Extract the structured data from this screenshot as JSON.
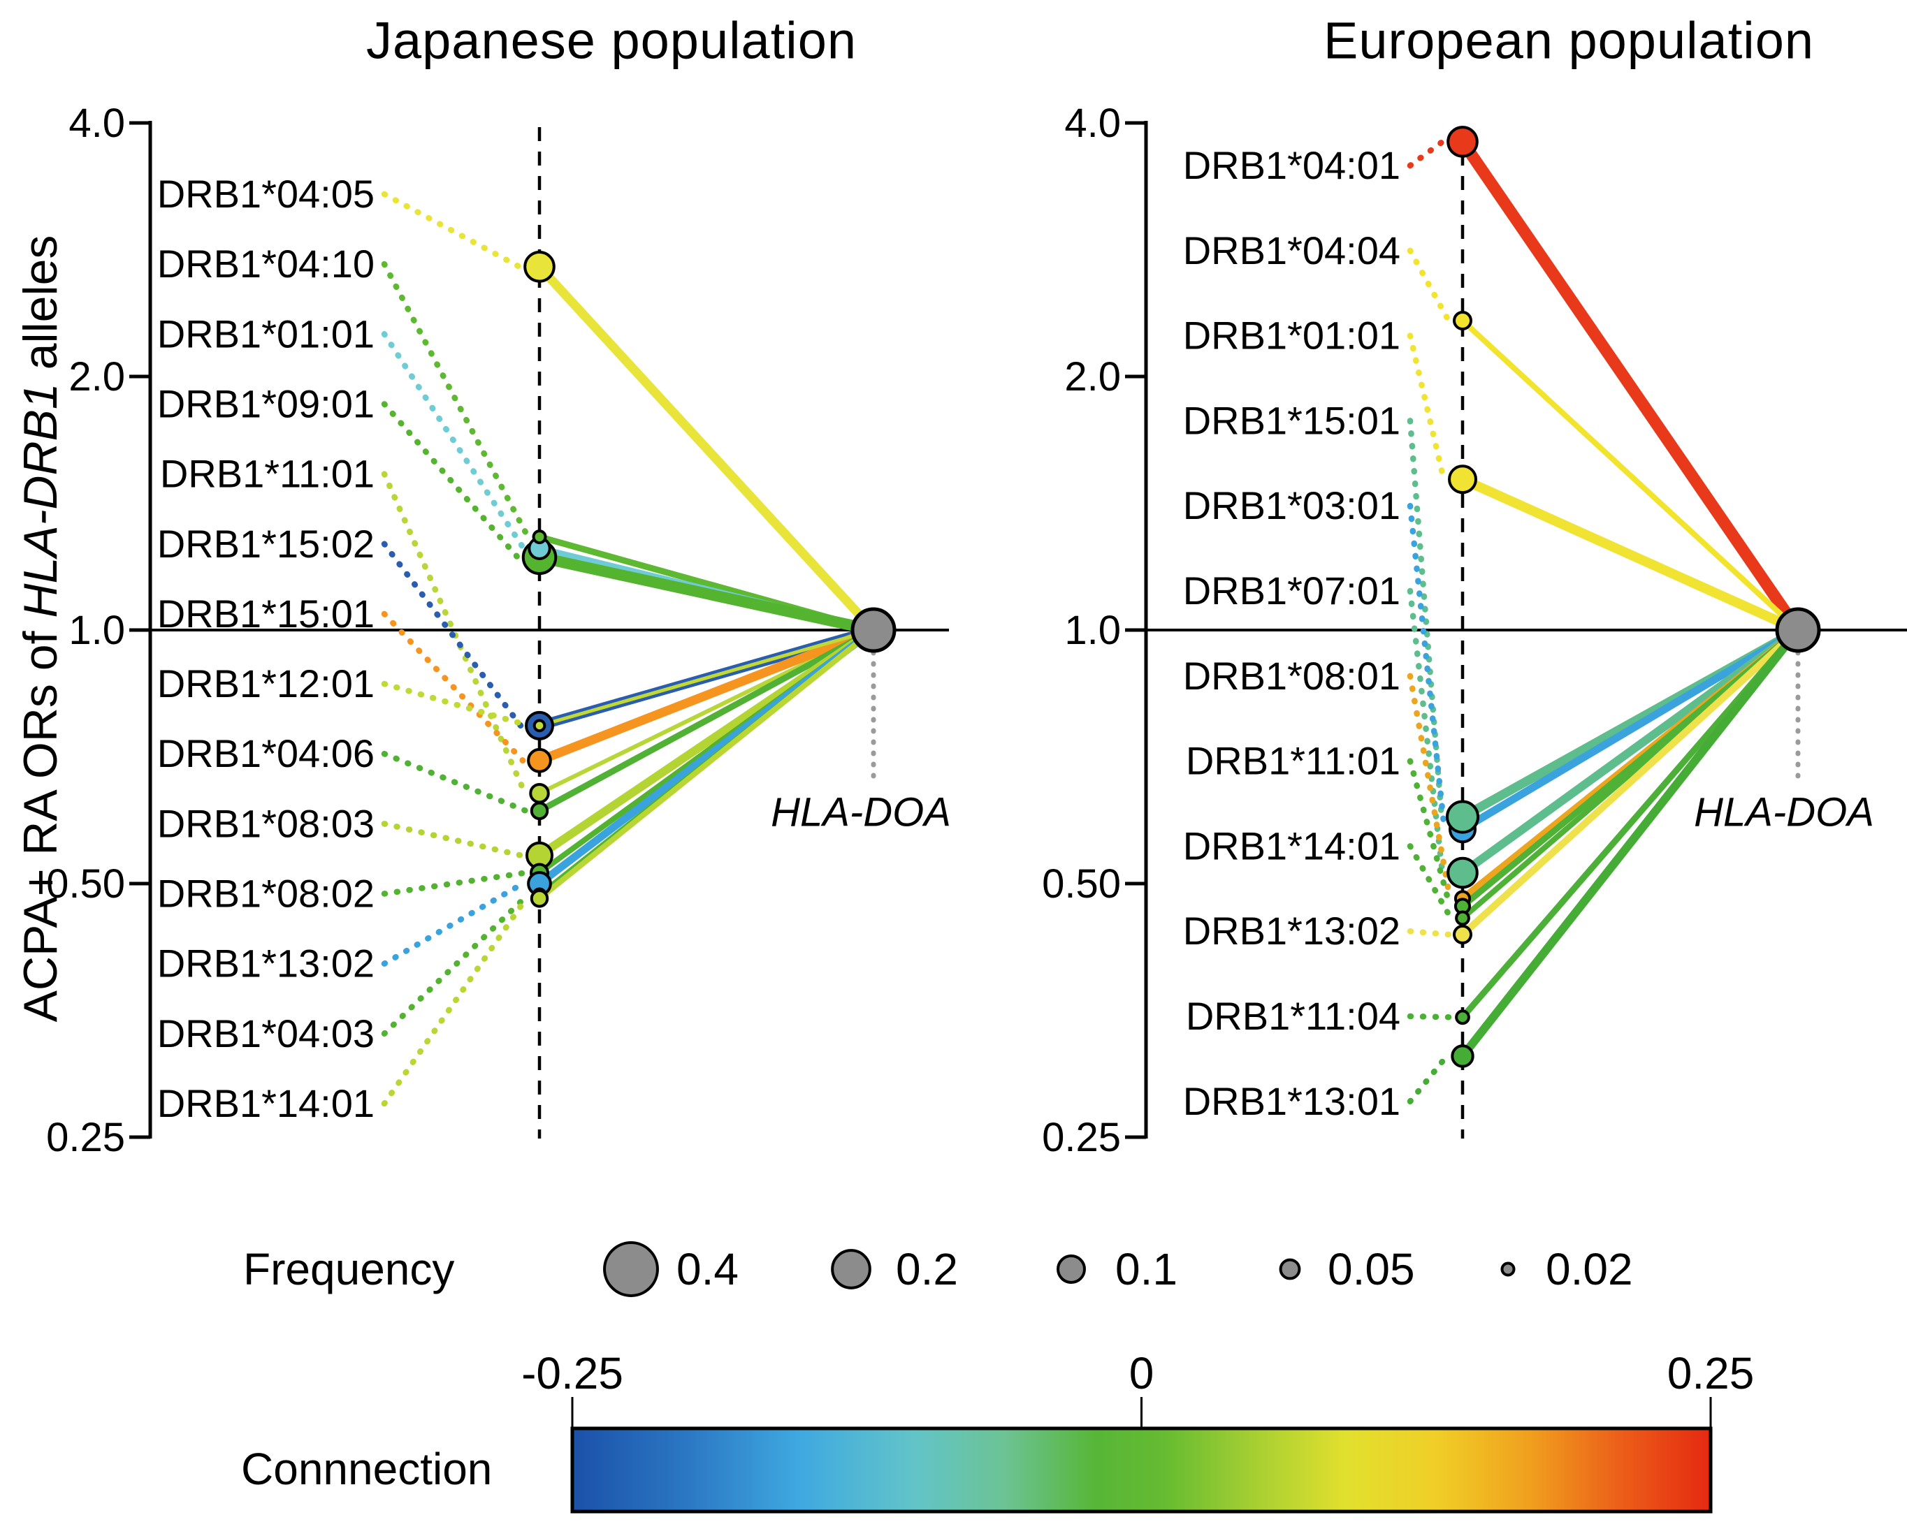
{
  "chart_data": {
    "type": "scatter",
    "description": "Dot-and-link plot: odds ratios (log2 y scale) of HLA-DRB1 alleles for ACPA+ rheumatoid arthritis in two populations; each allele dot is linked to the HLA-DOA reference node at OR 1.0; dot area encodes allele frequency, color and line width encode connection to HLA-DOA",
    "ylabel": "ACPA+ RA ORs of HLA-DRB1 alleles",
    "ylabel_parts": {
      "prefix": "ACPA+ RA ORs of ",
      "italic": "HLA-DRB1",
      "suffix": " alleles"
    },
    "y_scale": "log2",
    "ylim": [
      0.25,
      4.0
    ],
    "y_ticks": [
      {
        "label": "4.0",
        "value": 4.0
      },
      {
        "label": "2.0",
        "value": 2.0
      },
      {
        "label": "1.0",
        "value": 1.0
      },
      {
        "label": "0.50",
        "value": 0.5
      },
      {
        "label": "0.25",
        "value": 0.25
      }
    ],
    "reference_or": 1.0,
    "panels": [
      {
        "title": "Japanese population",
        "doa_label": "HLA-DOA",
        "alleles": [
          {
            "label": "DRB1*04:05",
            "or": 2.7,
            "freq": 0.12,
            "connection": 0.12,
            "color": "#e9e43a",
            "link_width": 13,
            "z": 0
          },
          {
            "label": "DRB1*04:10",
            "or": 1.29,
            "freq": 0.02,
            "connection": 0.03,
            "color": "#5eb832",
            "link_width": 9,
            "z": 2
          },
          {
            "label": "DRB1*01:01",
            "or": 1.25,
            "freq": 0.06,
            "connection": -0.07,
            "color": "#6fccd5",
            "link_width": 9,
            "z": 1
          },
          {
            "label": "DRB1*09:01",
            "or": 1.22,
            "freq": 0.15,
            "connection": 0.02,
            "color": "#55b42f",
            "link_width": 16,
            "z": 0
          },
          {
            "label": "DRB1*11:01",
            "or": 0.64,
            "freq": 0.045,
            "connection": 0.07,
            "color": "#b8d637",
            "link_width": 6,
            "z": 0
          },
          {
            "label": "DRB1*15:02",
            "or": 0.77,
            "freq": 0.1,
            "connection": -0.24,
            "color": "#2a5dad",
            "link_width": 14,
            "z": 0
          },
          {
            "label": "DRB1*15:01",
            "or": 0.7,
            "freq": 0.07,
            "connection": 0.19,
            "color": "#f5951f",
            "link_width": 13,
            "z": 0
          },
          {
            "label": "DRB1*12:01",
            "or": 0.77,
            "freq": 0.015,
            "connection": 0.08,
            "color": "#c0d934",
            "link_width": 5,
            "z": 1
          },
          {
            "label": "DRB1*04:06",
            "or": 0.61,
            "freq": 0.035,
            "connection": 0.02,
            "color": "#50b135",
            "link_width": 9,
            "z": 0
          },
          {
            "label": "DRB1*08:03",
            "or": 0.54,
            "freq": 0.09,
            "connection": 0.07,
            "color": "#b4d433",
            "link_width": 12,
            "z": 0
          },
          {
            "label": "DRB1*08:02",
            "or": 0.515,
            "freq": 0.04,
            "connection": 0.02,
            "color": "#54b231",
            "link_width": 8,
            "z": 1
          },
          {
            "label": "DRB1*13:02",
            "or": 0.5,
            "freq": 0.07,
            "connection": -0.13,
            "color": "#3aa3dd",
            "link_width": 11,
            "z": 2
          },
          {
            "label": "DRB1*04:03",
            "or": 0.485,
            "freq": 0.02,
            "connection": 0.03,
            "color": "#54b231",
            "link_width": 7,
            "z": 3
          },
          {
            "label": "DRB1*14:01",
            "or": 0.48,
            "freq": 0.035,
            "connection": 0.06,
            "color": "#b9d634",
            "link_width": 8,
            "z": 4
          }
        ],
        "doa_freq": 0.25
      },
      {
        "title": "European population",
        "doa_label": "HLA-DOA",
        "alleles": [
          {
            "label": "DRB1*04:01",
            "or": 3.8,
            "freq": 0.12,
            "connection": 0.25,
            "color": "#e8391b",
            "link_width": 17,
            "z": 0
          },
          {
            "label": "DRB1*04:04",
            "or": 2.33,
            "freq": 0.04,
            "connection": 0.12,
            "color": "#f2e32d",
            "link_width": 8,
            "z": 0
          },
          {
            "label": "DRB1*01:01",
            "or": 1.51,
            "freq": 0.1,
            "connection": 0.13,
            "color": "#f1e332",
            "link_width": 14,
            "z": 0
          },
          {
            "label": "DRB1*15:01",
            "or": 0.6,
            "freq": 0.135,
            "connection": -0.03,
            "color": "#5ebd8d",
            "link_width": 13,
            "z": 1
          },
          {
            "label": "DRB1*03:01",
            "or": 0.58,
            "freq": 0.09,
            "connection": -0.13,
            "color": "#3aa3dd",
            "link_width": 11,
            "z": 0
          },
          {
            "label": "DRB1*07:01",
            "or": 0.515,
            "freq": 0.12,
            "connection": -0.04,
            "color": "#5ebd8d",
            "link_width": 12,
            "z": 0
          },
          {
            "label": "DRB1*08:01",
            "or": 0.48,
            "freq": 0.028,
            "connection": 0.17,
            "color": "#eca51e",
            "link_width": 10,
            "z": 0
          },
          {
            "label": "DRB1*11:01",
            "or": 0.47,
            "freq": 0.028,
            "connection": 0.04,
            "color": "#4fb236",
            "link_width": 9,
            "z": 1
          },
          {
            "label": "DRB1*14:01",
            "or": 0.455,
            "freq": 0.022,
            "connection": 0.03,
            "color": "#4fb236",
            "link_width": 8,
            "z": 2
          },
          {
            "label": "DRB1*13:02",
            "or": 0.435,
            "freq": 0.04,
            "connection": 0.11,
            "color": "#eee14b",
            "link_width": 10,
            "z": 3
          },
          {
            "label": "DRB1*11:04",
            "or": 0.347,
            "freq": 0.022,
            "connection": 0.04,
            "color": "#4cb038",
            "link_width": 9,
            "z": 0
          },
          {
            "label": "DRB1*13:01",
            "or": 0.312,
            "freq": 0.06,
            "connection": 0.05,
            "color": "#45ad35",
            "link_width": 12,
            "z": 0
          }
        ],
        "doa_freq": 0.25
      }
    ],
    "frequency_legend": {
      "title": "Frequency",
      "items": [
        {
          "label": "0.4",
          "freq": 0.4
        },
        {
          "label": "0.2",
          "freq": 0.2
        },
        {
          "label": "0.1",
          "freq": 0.1
        },
        {
          "label": "0.05",
          "freq": 0.05
        },
        {
          "label": "0.02",
          "freq": 0.02
        }
      ],
      "dot_color": "#8c8c8c"
    },
    "colorbar": {
      "title": "Connnection",
      "range": [
        -0.25,
        0.25
      ],
      "tick_labels": [
        "-0.25",
        "0",
        "0.25"
      ],
      "gradient": [
        {
          "pos": 0,
          "color": "#1b51a9"
        },
        {
          "pos": 0.1,
          "color": "#2b77c3"
        },
        {
          "pos": 0.2,
          "color": "#3fa9e0"
        },
        {
          "pos": 0.3,
          "color": "#62c4c8"
        },
        {
          "pos": 0.38,
          "color": "#6cc394"
        },
        {
          "pos": 0.46,
          "color": "#57b637"
        },
        {
          "pos": 0.52,
          "color": "#66bb31"
        },
        {
          "pos": 0.6,
          "color": "#a7cf32"
        },
        {
          "pos": 0.68,
          "color": "#e2e02e"
        },
        {
          "pos": 0.76,
          "color": "#f0ce27"
        },
        {
          "pos": 0.84,
          "color": "#f0a01e"
        },
        {
          "pos": 0.92,
          "color": "#ec5f19"
        },
        {
          "pos": 1.0,
          "color": "#e52912"
        }
      ]
    },
    "reference_node_color": "#8c8c8c"
  }
}
